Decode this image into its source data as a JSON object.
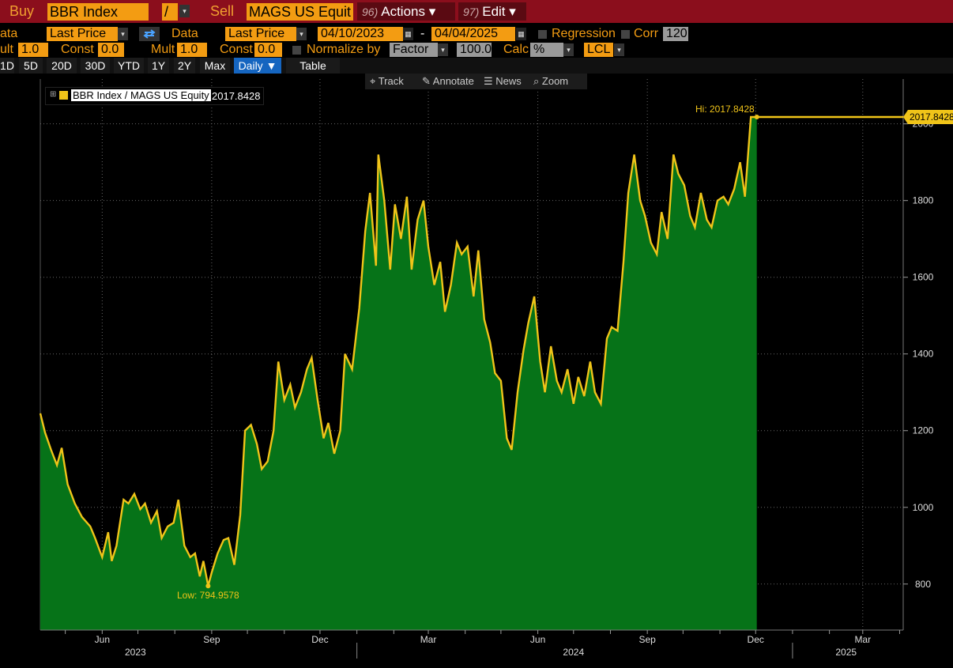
{
  "toolbar": {
    "buy_label": "Buy",
    "buy_value": "BBR Index",
    "op_value": "/",
    "sell_label": "Sell",
    "sell_value": "MAGS US Equit",
    "actions_num": "96)",
    "actions_label": "Actions ▾",
    "edit_num": "97)",
    "edit_label": "Edit ▾"
  },
  "settings": {
    "data1_label": "ata",
    "data1_value": "Last Price",
    "data2_label": "Data",
    "data2_value": "Last Price",
    "start_date": "04/10/2023",
    "dash": "-",
    "end_date": "04/04/2025",
    "regression_label": "Regression",
    "corr_label": "Corr",
    "corr_value": "120",
    "mult1_label": "ult",
    "mult1_value": "1.0",
    "const1_label": "Const",
    "const1_value": "0.0",
    "mult2_label": "Mult",
    "mult2_value": "1.0",
    "const2_label": "Const",
    "const2_value": "0.0",
    "normalize_label": "Normalize by",
    "normalize_value": "Factor",
    "normalize_num": "100.0",
    "calc_label": "Calc",
    "calc_value": "%",
    "currency_value": "LCL"
  },
  "periods": [
    "1D",
    "5D",
    "20D",
    "30D",
    "YTD",
    "1Y",
    "2Y",
    "Max"
  ],
  "frequency": "Daily ▼",
  "table_label": "Table",
  "tools": {
    "track": "Track",
    "annotate": "Annotate",
    "news": "News",
    "zoom": "Zoom"
  },
  "icons": {
    "swap": "swap-arrows-icon",
    "calendar": "calendar-icon",
    "track": "crosshair-icon",
    "annotate": "pen-icon",
    "news": "news-icon",
    "zoom": "zoom-icon"
  },
  "colors": {
    "line": "#f0c419",
    "fill": "#067318",
    "accent": "#f39c12",
    "header": "#8b0e1c",
    "selected_tab": "#1565c0"
  },
  "chart_data": {
    "type": "area",
    "series": [
      {
        "name": "BBR Index / MAGS US Equity",
        "last_value": "2017.8428",
        "points": [
          [
            "2023-04-10",
            1245
          ],
          [
            "2023-04-14",
            1195
          ],
          [
            "2023-04-19",
            1150
          ],
          [
            "2023-04-24",
            1110
          ],
          [
            "2023-04-28",
            1155
          ],
          [
            "2023-05-03",
            1060
          ],
          [
            "2023-05-09",
            1010
          ],
          [
            "2023-05-15",
            975
          ],
          [
            "2023-05-22",
            950
          ],
          [
            "2023-05-26",
            920
          ],
          [
            "2023-06-01",
            870
          ],
          [
            "2023-06-06",
            935
          ],
          [
            "2023-06-09",
            860
          ],
          [
            "2023-06-13",
            900
          ],
          [
            "2023-06-19",
            1020
          ],
          [
            "2023-06-23",
            1010
          ],
          [
            "2023-06-28",
            1035
          ],
          [
            "2023-07-03",
            995
          ],
          [
            "2023-07-07",
            1010
          ],
          [
            "2023-07-12",
            960
          ],
          [
            "2023-07-17",
            990
          ],
          [
            "2023-07-21",
            920
          ],
          [
            "2023-07-26",
            950
          ],
          [
            "2023-07-31",
            960
          ],
          [
            "2023-08-04",
            1020
          ],
          [
            "2023-08-09",
            900
          ],
          [
            "2023-08-14",
            870
          ],
          [
            "2023-08-18",
            880
          ],
          [
            "2023-08-22",
            820
          ],
          [
            "2023-08-25",
            860
          ],
          [
            "2023-08-29",
            795
          ],
          [
            "2023-09-01",
            830
          ],
          [
            "2023-09-06",
            880
          ],
          [
            "2023-09-11",
            915
          ],
          [
            "2023-09-15",
            920
          ],
          [
            "2023-09-20",
            850
          ],
          [
            "2023-09-25",
            980
          ],
          [
            "2023-09-29",
            1200
          ],
          [
            "2023-10-04",
            1215
          ],
          [
            "2023-10-09",
            1165
          ],
          [
            "2023-10-13",
            1100
          ],
          [
            "2023-10-18",
            1120
          ],
          [
            "2023-10-23",
            1200
          ],
          [
            "2023-10-27",
            1380
          ],
          [
            "2023-11-01",
            1280
          ],
          [
            "2023-11-06",
            1320
          ],
          [
            "2023-11-10",
            1260
          ],
          [
            "2023-11-15",
            1300
          ],
          [
            "2023-11-20",
            1360
          ],
          [
            "2023-11-24",
            1390
          ],
          [
            "2023-11-29",
            1280
          ],
          [
            "2023-12-04",
            1180
          ],
          [
            "2023-12-08",
            1220
          ],
          [
            "2023-12-13",
            1140
          ],
          [
            "2023-12-18",
            1200
          ],
          [
            "2023-12-22",
            1400
          ],
          [
            "2023-12-28",
            1360
          ],
          [
            "2024-01-03",
            1520
          ],
          [
            "2024-01-08",
            1720
          ],
          [
            "2024-01-12",
            1820
          ],
          [
            "2024-01-17",
            1630
          ],
          [
            "2024-01-19",
            1920
          ],
          [
            "2024-01-24",
            1800
          ],
          [
            "2024-01-29",
            1620
          ],
          [
            "2024-02-02",
            1790
          ],
          [
            "2024-02-07",
            1700
          ],
          [
            "2024-02-12",
            1810
          ],
          [
            "2024-02-16",
            1620
          ],
          [
            "2024-02-21",
            1750
          ],
          [
            "2024-02-26",
            1800
          ],
          [
            "2024-03-01",
            1680
          ],
          [
            "2024-03-06",
            1580
          ],
          [
            "2024-03-11",
            1640
          ],
          [
            "2024-03-15",
            1510
          ],
          [
            "2024-03-20",
            1580
          ],
          [
            "2024-03-25",
            1690
          ],
          [
            "2024-03-29",
            1660
          ],
          [
            "2024-04-03",
            1680
          ],
          [
            "2024-04-08",
            1550
          ],
          [
            "2024-04-12",
            1670
          ],
          [
            "2024-04-17",
            1490
          ],
          [
            "2024-04-22",
            1430
          ],
          [
            "2024-04-26",
            1350
          ],
          [
            "2024-05-01",
            1330
          ],
          [
            "2024-05-06",
            1180
          ],
          [
            "2024-05-10",
            1150
          ],
          [
            "2024-05-15",
            1300
          ],
          [
            "2024-05-20",
            1410
          ],
          [
            "2024-05-24",
            1480
          ],
          [
            "2024-05-29",
            1550
          ],
          [
            "2024-06-03",
            1380
          ],
          [
            "2024-06-07",
            1300
          ],
          [
            "2024-06-12",
            1420
          ],
          [
            "2024-06-17",
            1330
          ],
          [
            "2024-06-21",
            1300
          ],
          [
            "2024-06-26",
            1360
          ],
          [
            "2024-07-01",
            1270
          ],
          [
            "2024-07-05",
            1340
          ],
          [
            "2024-07-10",
            1290
          ],
          [
            "2024-07-15",
            1380
          ],
          [
            "2024-07-19",
            1300
          ],
          [
            "2024-07-24",
            1270
          ],
          [
            "2024-07-29",
            1440
          ],
          [
            "2024-08-02",
            1470
          ],
          [
            "2024-08-07",
            1460
          ],
          [
            "2024-08-12",
            1640
          ],
          [
            "2024-08-16",
            1820
          ],
          [
            "2024-08-21",
            1920
          ],
          [
            "2024-08-26",
            1800
          ],
          [
            "2024-08-30",
            1760
          ],
          [
            "2024-09-04",
            1690
          ],
          [
            "2024-09-09",
            1660
          ],
          [
            "2024-09-13",
            1770
          ],
          [
            "2024-09-18",
            1700
          ],
          [
            "2024-09-23",
            1920
          ],
          [
            "2024-09-27",
            1870
          ],
          [
            "2024-10-02",
            1840
          ],
          [
            "2024-10-07",
            1760
          ],
          [
            "2024-10-11",
            1730
          ],
          [
            "2024-10-16",
            1820
          ],
          [
            "2024-10-21",
            1750
          ],
          [
            "2024-10-25",
            1730
          ],
          [
            "2024-10-30",
            1800
          ],
          [
            "2024-11-04",
            1810
          ],
          [
            "2024-11-08",
            1790
          ],
          [
            "2024-11-13",
            1830
          ],
          [
            "2024-11-18",
            1900
          ],
          [
            "2024-11-22",
            1810
          ],
          [
            "2024-11-27",
            2017.8428
          ],
          [
            "2024-12-02",
            2017.8428
          ]
        ]
      }
    ],
    "xlabel": "",
    "ylabel": "",
    "ylim": [
      680,
      2090
    ],
    "y_ticks": [
      800,
      1000,
      1200,
      1400,
      1600,
      1800,
      2000
    ],
    "x_month_ticks": [
      "Jun",
      "Sep",
      "Dec",
      "Mar",
      "Jun",
      "Sep",
      "Dec",
      "Mar"
    ],
    "x_years": [
      "2023",
      "2024",
      "2025"
    ],
    "annotations": {
      "high": "Hi: 2017.8428",
      "low": "Low: 794.9578",
      "last_label": "2017.8428"
    },
    "grid": true,
    "legend_position": "top-left"
  }
}
